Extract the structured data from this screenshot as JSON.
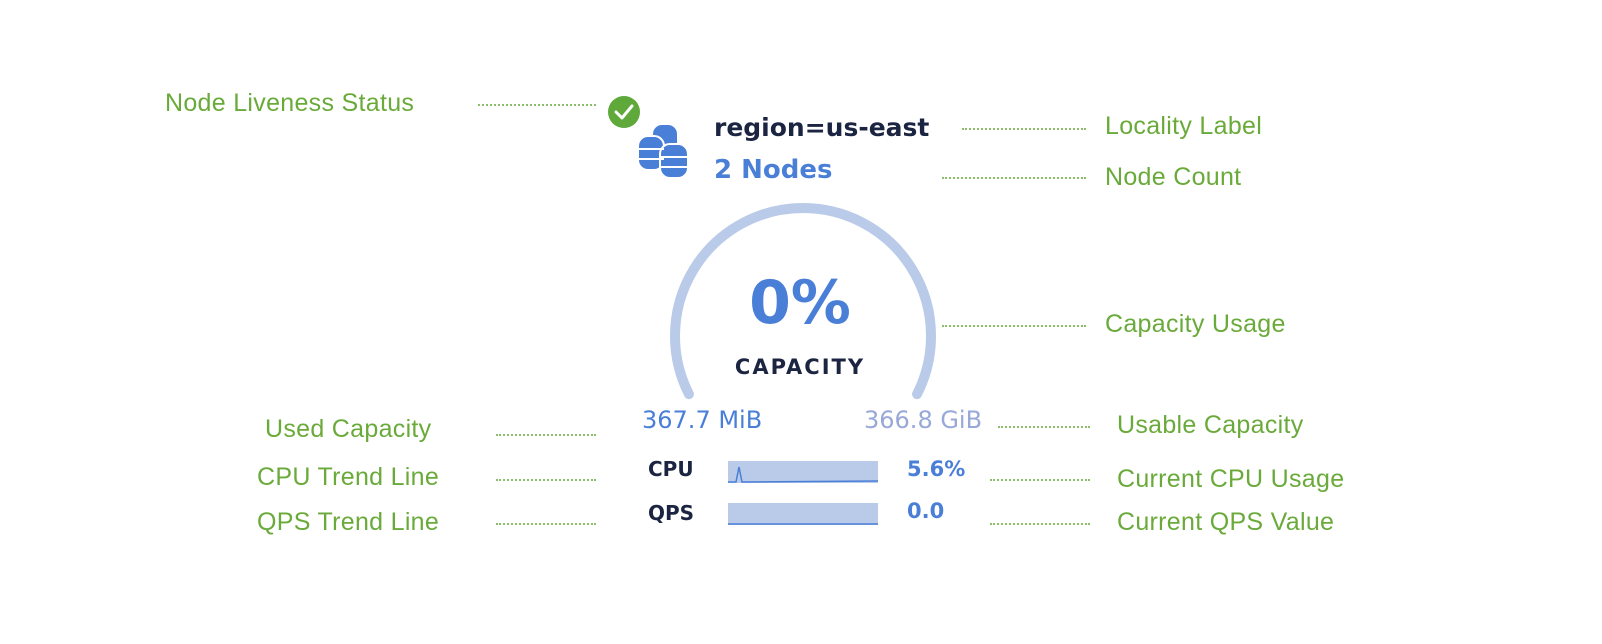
{
  "annotations": {
    "liveness": "Node Liveness Status",
    "locality": "Locality Label",
    "node_count": "Node Count",
    "capacity_usage": "Capacity Usage",
    "used_capacity": "Used Capacity",
    "usable_capacity": "Usable Capacity",
    "cpu_trend": "CPU Trend Line",
    "current_cpu": "Current CPU Usage",
    "qps_trend": "QPS Trend Line",
    "current_qps": "Current QPS Value"
  },
  "widget": {
    "liveness_status": "live",
    "locality": "region=us-east",
    "node_count": "2 Nodes",
    "capacity_percent": "0%",
    "capacity_label": "CAPACITY",
    "capacity_fraction": 0.0,
    "used": "367.7 MiB",
    "usable": "366.8 GiB",
    "cpu_label": "CPU",
    "cpu_value": "5.6%",
    "qps_label": "QPS",
    "qps_value": "0.0"
  },
  "colors": {
    "annotation": "#6aaa3a",
    "accent": "#4a7fd8",
    "gauge_track": "#b9cbe8",
    "text": "#1b2440"
  },
  "icons": [
    "check-circle-icon",
    "database-icon"
  ]
}
